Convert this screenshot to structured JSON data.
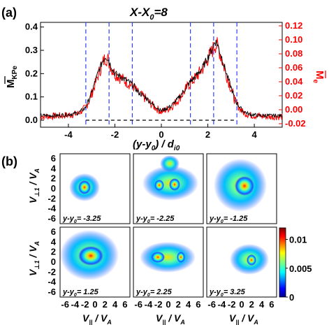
{
  "chart_data": [
    {
      "type": "line",
      "panel_label": "(a)",
      "title": "X-X",
      "title_subscript": "0",
      "title_suffix": "=8",
      "xlabel": "(y-y",
      "xlabel_sub": "0",
      "xlabel_mid": ") / d",
      "xlabel_sub2": "i0",
      "ylabel_left": "M",
      "ylabel_left_sub": "KPe",
      "ylabel_right": "M",
      "ylabel_right_sub": "e",
      "xlim": [
        -5.2,
        5.2
      ],
      "ylim_left": [
        -0.03,
        0.42
      ],
      "ylim_right": [
        -0.025,
        0.125
      ],
      "xticks": [
        -4,
        -2,
        0,
        2,
        4
      ],
      "xtick_labels": [
        "-4",
        "-2",
        "0",
        "2",
        "4"
      ],
      "yticks_left": [
        0.0,
        0.1,
        0.2,
        0.3,
        0.4
      ],
      "ytick_labels_left": [
        "0.0",
        "0.1",
        "0.2",
        "0.3",
        "0.4"
      ],
      "yticks_right": [
        -0.02,
        0.0,
        0.02,
        0.04,
        0.06,
        0.08,
        0.1,
        0.12
      ],
      "ytick_labels_right": [
        "-0.02",
        "0.00",
        "0.02",
        "0.04",
        "0.06",
        "0.08",
        "0.10",
        "0.12"
      ],
      "vlines_dashed_blue": [
        -3.25,
        -2.25,
        -1.25,
        1.25,
        2.25,
        3.25
      ],
      "hline_dashed_black": 0.0,
      "series": [
        {
          "axis": "left",
          "color": "#000000",
          "x": [
            -5.2,
            -4.5,
            -4.0,
            -3.6,
            -3.3,
            -3.1,
            -2.9,
            -2.7,
            -2.5,
            -2.4,
            -2.3,
            -2.2,
            -2.1,
            -2.0,
            -1.8,
            -1.5,
            -1.2,
            -1.0,
            -0.7,
            -0.4,
            0.0,
            0.4,
            0.7,
            1.0,
            1.2,
            1.5,
            1.8,
            2.0,
            2.2,
            2.3,
            2.4,
            2.5,
            2.6,
            2.8,
            3.0,
            3.2,
            3.5,
            3.8,
            4.2,
            4.6,
            5.2
          ],
          "values": [
            0.02,
            0.02,
            0.025,
            0.03,
            0.05,
            0.09,
            0.15,
            0.21,
            0.26,
            0.275,
            0.265,
            0.24,
            0.22,
            0.2,
            0.19,
            0.17,
            0.15,
            0.12,
            0.1,
            0.07,
            0.04,
            0.06,
            0.09,
            0.13,
            0.16,
            0.19,
            0.23,
            0.27,
            0.31,
            0.34,
            0.33,
            0.3,
            0.27,
            0.2,
            0.14,
            0.08,
            0.04,
            0.025,
            0.02,
            0.02,
            0.02
          ]
        },
        {
          "axis": "left",
          "color": "#ff0000",
          "x": [
            -5.2,
            -4.5,
            -4.0,
            -3.6,
            -3.3,
            -3.1,
            -2.9,
            -2.7,
            -2.5,
            -2.4,
            -2.3,
            -2.2,
            -2.1,
            -2.0,
            -1.8,
            -1.5,
            -1.2,
            -1.0,
            -0.7,
            -0.4,
            0.0,
            0.4,
            0.7,
            1.0,
            1.2,
            1.5,
            1.8,
            2.0,
            2.2,
            2.3,
            2.4,
            2.5,
            2.6,
            2.8,
            3.0,
            3.2,
            3.5,
            3.8,
            4.2,
            4.6,
            5.2
          ],
          "values": [
            0.015,
            0.018,
            0.022,
            0.028,
            0.05,
            0.085,
            0.14,
            0.2,
            0.25,
            0.27,
            0.26,
            0.235,
            0.215,
            0.2,
            0.185,
            0.165,
            0.145,
            0.115,
            0.095,
            0.065,
            0.035,
            0.055,
            0.085,
            0.125,
            0.155,
            0.185,
            0.225,
            0.265,
            0.3,
            0.325,
            0.32,
            0.295,
            0.26,
            0.195,
            0.135,
            0.075,
            0.035,
            0.022,
            0.018,
            0.015,
            0.015
          ]
        }
      ]
    },
    {
      "type": "heatmap",
      "panel_label": "(b)",
      "xlabel": "V",
      "xlabel_sub": "||",
      "xlabel_suffix": " / V",
      "xlabel_sub2": "A",
      "ylabel": "V",
      "ylabel_sub": "⊥1",
      "ylabel_suffix": " / V",
      "ylabel_sub2": "A",
      "xticks": [
        -6,
        -4,
        -2,
        0,
        2,
        4,
        6
      ],
      "xtick_labels": [
        "-6",
        "-4",
        "-2",
        "0",
        "2",
        "4",
        "6"
      ],
      "yticks": [
        -6,
        -4,
        -2,
        0,
        2,
        4,
        6
      ],
      "ytick_labels": [
        "-6",
        "-4",
        "-2",
        "0",
        "2",
        "4",
        "6"
      ],
      "colorbar": {
        "range": [
          0,
          0.012
        ],
        "ticks": [
          0,
          0.005,
          0.01
        ],
        "tick_labels": [
          "0",
          "0.005",
          "0.01"
        ]
      },
      "panels": [
        {
          "label": "y-y",
          "label_sub": "0",
          "label_value": "= -3.25"
        },
        {
          "label": "y-y",
          "label_sub": "0",
          "label_value": "= -2.25"
        },
        {
          "label": "y-y",
          "label_sub": "0",
          "label_value": "= -1.25"
        },
        {
          "label": "y-y",
          "label_sub": "0",
          "label_value": "= 1.25"
        },
        {
          "label": "y-y",
          "label_sub": "0",
          "label_value": "= 2.25"
        },
        {
          "label": "y-y",
          "label_sub": "0",
          "label_value": "= 3.25"
        }
      ]
    }
  ]
}
